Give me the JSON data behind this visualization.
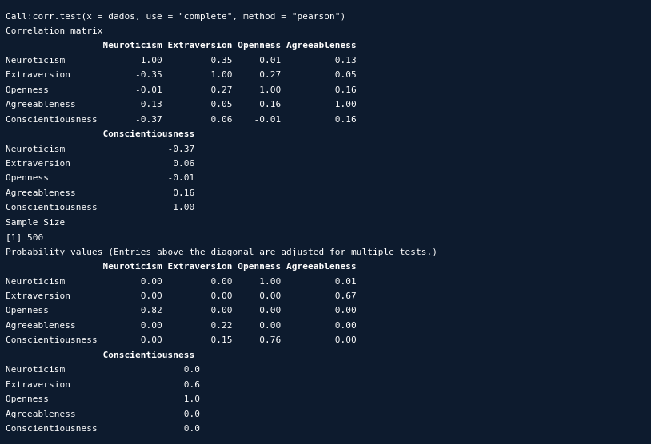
{
  "bg_color": "#0d1b2e",
  "text_color": "#ffffff",
  "font_family": "monospace",
  "font_size": 8.0,
  "lines": [
    {
      "text": "Call:corr.test(x = dados, use = \"complete\", method = \"pearson\")",
      "bold": false
    },
    {
      "text": "Correlation matrix",
      "bold": false
    },
    {
      "text": "                  Neuroticism Extraversion Openness Agreeableness",
      "bold": true
    },
    {
      "text": "Neuroticism              1.00        -0.35    -0.01         -0.13",
      "bold": false
    },
    {
      "text": "Extraversion            -0.35         1.00     0.27          0.05",
      "bold": false
    },
    {
      "text": "Openness                -0.01         0.27     1.00          0.16",
      "bold": false
    },
    {
      "text": "Agreeableness           -0.13         0.05     0.16          1.00",
      "bold": false
    },
    {
      "text": "Conscientiousness       -0.37         0.06    -0.01          0.16",
      "bold": false
    },
    {
      "text": "                  Conscientiousness",
      "bold": true
    },
    {
      "text": "Neuroticism                   -0.37",
      "bold": false
    },
    {
      "text": "Extraversion                   0.06",
      "bold": false
    },
    {
      "text": "Openness                      -0.01",
      "bold": false
    },
    {
      "text": "Agreeableness                  0.16",
      "bold": false
    },
    {
      "text": "Conscientiousness              1.00",
      "bold": false
    },
    {
      "text": "Sample Size",
      "bold": false
    },
    {
      "text": "[1] 500",
      "bold": false
    },
    {
      "text": "Probability values (Entries above the diagonal are adjusted for multiple tests.)",
      "bold": false
    },
    {
      "text": "                  Neuroticism Extraversion Openness Agreeableness",
      "bold": true
    },
    {
      "text": "Neuroticism              0.00         0.00     1.00          0.01",
      "bold": false
    },
    {
      "text": "Extraversion             0.00         0.00     0.00          0.67",
      "bold": false
    },
    {
      "text": "Openness                 0.82         0.00     0.00          0.00",
      "bold": false
    },
    {
      "text": "Agreeableness            0.00         0.22     0.00          0.00",
      "bold": false
    },
    {
      "text": "Conscientiousness        0.00         0.15     0.76          0.00",
      "bold": false
    },
    {
      "text": "                  Conscientiousness",
      "bold": true
    },
    {
      "text": "Neuroticism                      0.0",
      "bold": false
    },
    {
      "text": "Extraversion                     0.6",
      "bold": false
    },
    {
      "text": "Openness                         1.0",
      "bold": false
    },
    {
      "text": "Agreeableness                    0.0",
      "bold": false
    },
    {
      "text": "Conscientiousness                0.0",
      "bold": false
    }
  ]
}
